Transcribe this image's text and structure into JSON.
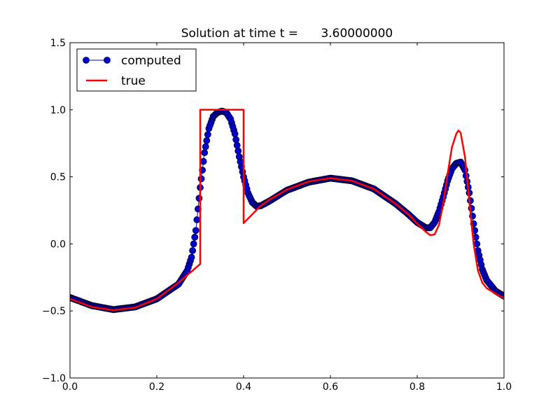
{
  "chart_data": {
    "type": "line",
    "title": "Solution at time t =      3.60000000",
    "xlabel": "",
    "ylabel": "",
    "xlim": [
      0.0,
      1.0
    ],
    "ylim": [
      -1.0,
      1.5
    ],
    "xticks": [
      "0.0",
      "0.2",
      "0.4",
      "0.6",
      "0.8",
      "1.0"
    ],
    "yticks": [
      "−1.0",
      "−0.5",
      "0.0",
      "0.5",
      "1.0",
      "1.5"
    ],
    "grid": false,
    "legend": {
      "placement": "top-left",
      "entries": [
        "computed",
        "true"
      ]
    },
    "colors": {
      "computed_fill": "#0000cc",
      "computed_edge": "#000033",
      "true_line": "#ff0000"
    },
    "series": [
      {
        "name": "computed",
        "style": "line-with-circle-markers",
        "points": [
          [
            0.0,
            -0.4
          ],
          [
            0.05,
            -0.46
          ],
          [
            0.1,
            -0.49
          ],
          [
            0.15,
            -0.47
          ],
          [
            0.2,
            -0.41
          ],
          [
            0.25,
            -0.3
          ],
          [
            0.27,
            -0.2
          ],
          [
            0.28,
            -0.1
          ],
          [
            0.29,
            0.1
          ],
          [
            0.3,
            0.42
          ],
          [
            0.31,
            0.68
          ],
          [
            0.32,
            0.86
          ],
          [
            0.33,
            0.95
          ],
          [
            0.34,
            0.98
          ],
          [
            0.35,
            0.99
          ],
          [
            0.36,
            0.98
          ],
          [
            0.37,
            0.93
          ],
          [
            0.38,
            0.82
          ],
          [
            0.39,
            0.65
          ],
          [
            0.4,
            0.5
          ],
          [
            0.41,
            0.38
          ],
          [
            0.42,
            0.31
          ],
          [
            0.43,
            0.28
          ],
          [
            0.44,
            0.285
          ],
          [
            0.46,
            0.32
          ],
          [
            0.5,
            0.4
          ],
          [
            0.55,
            0.46
          ],
          [
            0.6,
            0.49
          ],
          [
            0.65,
            0.47
          ],
          [
            0.7,
            0.41
          ],
          [
            0.75,
            0.3
          ],
          [
            0.78,
            0.22
          ],
          [
            0.8,
            0.16
          ],
          [
            0.82,
            0.12
          ],
          [
            0.83,
            0.12
          ],
          [
            0.84,
            0.16
          ],
          [
            0.85,
            0.24
          ],
          [
            0.86,
            0.35
          ],
          [
            0.87,
            0.47
          ],
          [
            0.88,
            0.56
          ],
          [
            0.89,
            0.6
          ],
          [
            0.9,
            0.61
          ],
          [
            0.91,
            0.55
          ],
          [
            0.92,
            0.38
          ],
          [
            0.93,
            0.15
          ],
          [
            0.94,
            -0.05
          ],
          [
            0.95,
            -0.19
          ],
          [
            0.96,
            -0.27
          ],
          [
            0.98,
            -0.35
          ],
          [
            1.0,
            -0.39
          ]
        ]
      },
      {
        "name": "true",
        "style": "line",
        "points": [
          [
            0.0,
            -0.41
          ],
          [
            0.05,
            -0.47
          ],
          [
            0.1,
            -0.495
          ],
          [
            0.15,
            -0.475
          ],
          [
            0.2,
            -0.41
          ],
          [
            0.25,
            -0.29
          ],
          [
            0.3,
            -0.15
          ],
          [
            0.3,
            1.0
          ],
          [
            0.4,
            1.0
          ],
          [
            0.4,
            0.155
          ],
          [
            0.44,
            0.285
          ],
          [
            0.46,
            0.33
          ],
          [
            0.5,
            0.405
          ],
          [
            0.55,
            0.465
          ],
          [
            0.6,
            0.49
          ],
          [
            0.65,
            0.47
          ],
          [
            0.7,
            0.41
          ],
          [
            0.75,
            0.3
          ],
          [
            0.78,
            0.22
          ],
          [
            0.8,
            0.15
          ],
          [
            0.82,
            0.09
          ],
          [
            0.83,
            0.065
          ],
          [
            0.84,
            0.07
          ],
          [
            0.85,
            0.14
          ],
          [
            0.86,
            0.3
          ],
          [
            0.87,
            0.52
          ],
          [
            0.88,
            0.72
          ],
          [
            0.89,
            0.82
          ],
          [
            0.895,
            0.845
          ],
          [
            0.9,
            0.83
          ],
          [
            0.91,
            0.65
          ],
          [
            0.92,
            0.32
          ],
          [
            0.93,
            0.0
          ],
          [
            0.94,
            -0.2
          ],
          [
            0.95,
            -0.29
          ],
          [
            0.96,
            -0.33
          ],
          [
            0.98,
            -0.37
          ],
          [
            1.0,
            -0.405
          ]
        ]
      }
    ]
  }
}
